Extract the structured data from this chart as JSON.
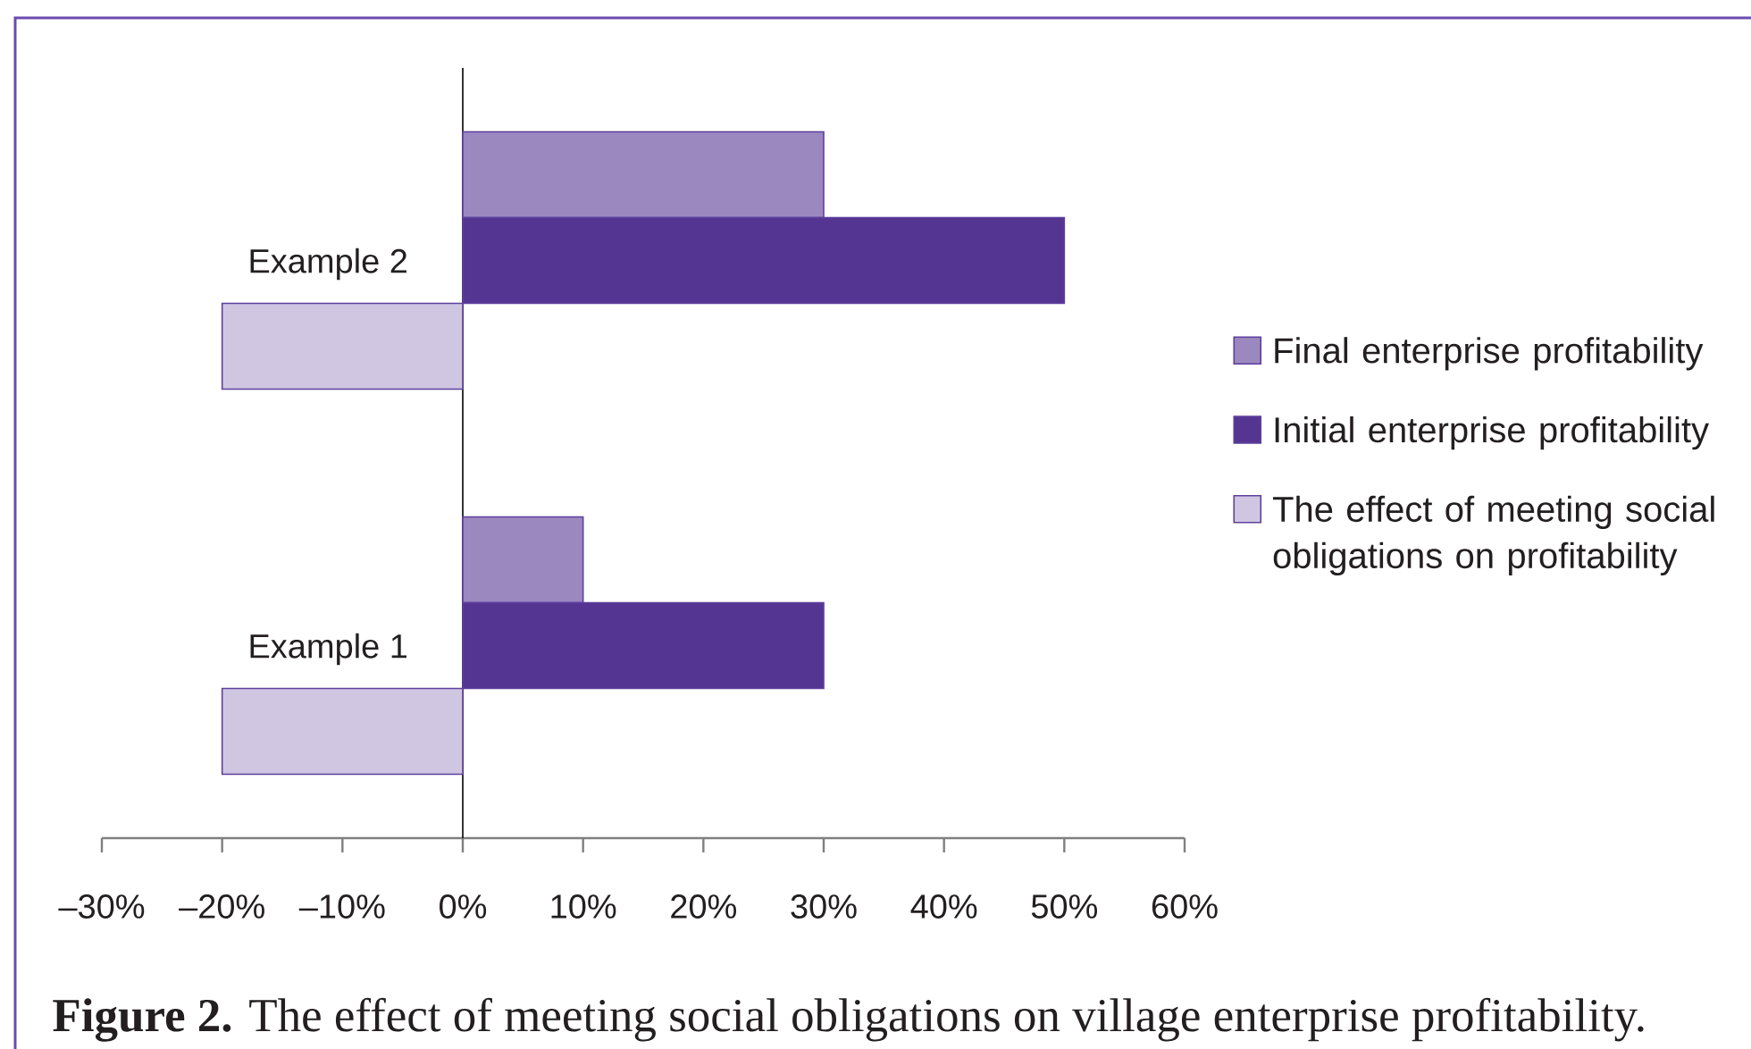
{
  "chart_data": {
    "type": "bar",
    "orientation": "horizontal",
    "categories": [
      "Example 2",
      "Example 1"
    ],
    "series": [
      {
        "name": "Final enterprise profitability",
        "color": "#9b88bf",
        "values": [
          30,
          10
        ]
      },
      {
        "name": "Initial enterprise profitability",
        "color": "#553592",
        "values": [
          50,
          30
        ]
      },
      {
        "name": "The effect of meeting social obligations on profitability",
        "color": "#d0c6e2",
        "values": [
          -20,
          -20
        ]
      }
    ],
    "xlim": [
      -30,
      60
    ],
    "xticks": [
      {
        "value": -30,
        "label": "–30%"
      },
      {
        "value": -20,
        "label": "–20%"
      },
      {
        "value": -10,
        "label": "–10%"
      },
      {
        "value": 0,
        "label": "0%"
      },
      {
        "value": 10,
        "label": "10%"
      },
      {
        "value": 20,
        "label": "20%"
      },
      {
        "value": 30,
        "label": "30%"
      },
      {
        "value": 40,
        "label": "40%"
      },
      {
        "value": 50,
        "label": "50%"
      },
      {
        "value": 60,
        "label": "60%"
      }
    ],
    "legend": "right",
    "annotations": [
      "**Figure 2.** The effect of meeting social obligations on village enterprise profitability."
    ]
  }
}
